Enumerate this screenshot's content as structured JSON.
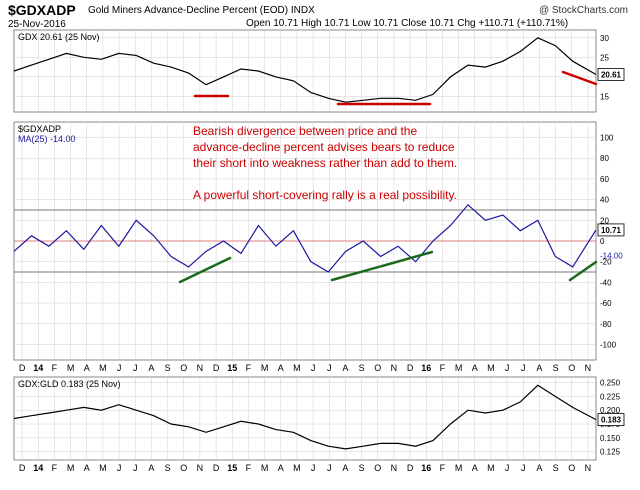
{
  "header": {
    "symbol": "$GDXADP",
    "description": "Gold Miners Advance-Decline Percent (EOD) INDX",
    "credit": "@ StockCharts.com",
    "date": "25-Nov-2016",
    "quote": "Open 10.71  High 10.71  Low 10.71  Close 10.71  Chg +110.71 (+110.71%)"
  },
  "colors": {
    "price_line": "#000000",
    "adp_line": "#1a1aa0",
    "annotation_text": "#cc0000",
    "bearish_line": "#cc0000",
    "bullish_line": "#1a6a1a",
    "zero_line": "#e08080",
    "grid": "#d0d0d0"
  },
  "annotation": {
    "lines": [
      "Bearish divergence between price and the",
      "advance-decline percent advises bears to reduce",
      "their short into weakness rather  than add to them.",
      "",
      "A powerful short-covering rally is a real possibility."
    ]
  },
  "x_axis": {
    "labels": [
      "D",
      "14",
      "F",
      "M",
      "A",
      "M",
      "J",
      "J",
      "A",
      "S",
      "O",
      "N",
      "D",
      "15",
      "F",
      "M",
      "A",
      "M",
      "J",
      "J",
      "A",
      "S",
      "O",
      "N",
      "D",
      "16",
      "F",
      "M",
      "A",
      "M",
      "J",
      "J",
      "A",
      "S",
      "O",
      "N"
    ],
    "bold_labels": [
      "14",
      "15",
      "16"
    ]
  },
  "chart_data": [
    {
      "type": "line",
      "panel": "top",
      "legend": "GDX 20.61 (25 Nov)",
      "last_value_label": "20.61",
      "ylim": [
        11,
        32
      ],
      "y_ticks": [
        15,
        20,
        25,
        30
      ],
      "x": [
        0,
        0.03,
        0.06,
        0.09,
        0.12,
        0.15,
        0.18,
        0.21,
        0.24,
        0.27,
        0.3,
        0.33,
        0.36,
        0.39,
        0.42,
        0.45,
        0.48,
        0.51,
        0.54,
        0.57,
        0.6,
        0.63,
        0.66,
        0.69,
        0.72,
        0.75,
        0.78,
        0.81,
        0.84,
        0.87,
        0.9,
        0.93,
        0.96,
        1.0
      ],
      "y": [
        21.5,
        23.0,
        24.5,
        26.0,
        25.0,
        24.5,
        26.0,
        25.5,
        23.5,
        22.5,
        21.0,
        18.0,
        20.0,
        22.0,
        21.5,
        20.0,
        19.0,
        16.0,
        14.5,
        13.5,
        14.0,
        14.5,
        14.5,
        14.0,
        15.5,
        20.0,
        23.0,
        22.5,
        24.0,
        26.5,
        30.0,
        28.0,
        24.0,
        20.61
      ]
    },
    {
      "type": "line",
      "panel": "middle",
      "legend": "$GDXADP",
      "legend_ma": "MA(25) -14.00",
      "last_value_label": "10.71",
      "ma_label": "-14.00",
      "ylim": [
        -115,
        115
      ],
      "y_ticks": [
        100,
        80,
        60,
        40,
        20,
        0,
        -20,
        -40,
        -60,
        -80,
        -100
      ],
      "reference_lines": [
        30,
        -30
      ],
      "x": [
        0,
        0.03,
        0.06,
        0.09,
        0.12,
        0.15,
        0.18,
        0.21,
        0.24,
        0.27,
        0.3,
        0.33,
        0.36,
        0.39,
        0.42,
        0.45,
        0.48,
        0.51,
        0.54,
        0.57,
        0.6,
        0.63,
        0.66,
        0.69,
        0.72,
        0.75,
        0.78,
        0.81,
        0.84,
        0.87,
        0.9,
        0.93,
        0.96,
        1.0
      ],
      "y": [
        -10,
        5,
        -5,
        10,
        -8,
        15,
        -5,
        20,
        5,
        -15,
        -25,
        -10,
        0,
        -12,
        15,
        -5,
        10,
        -20,
        -30,
        -10,
        0,
        -15,
        -5,
        -20,
        0,
        15,
        35,
        20,
        25,
        10,
        20,
        -15,
        -25,
        10.71
      ]
    },
    {
      "type": "line",
      "panel": "bottom",
      "legend": "GDX:GLD 0.183 (25 Nov)",
      "last_value_label": "0.183",
      "ylim": [
        0.11,
        0.26
      ],
      "y_ticks": [
        0.25,
        0.225,
        0.2,
        0.175,
        0.15,
        0.125
      ],
      "x": [
        0,
        0.03,
        0.06,
        0.09,
        0.12,
        0.15,
        0.18,
        0.21,
        0.24,
        0.27,
        0.3,
        0.33,
        0.36,
        0.39,
        0.42,
        0.45,
        0.48,
        0.51,
        0.54,
        0.57,
        0.6,
        0.63,
        0.66,
        0.69,
        0.72,
        0.75,
        0.78,
        0.81,
        0.84,
        0.87,
        0.9,
        0.93,
        0.96,
        1.0
      ],
      "y": [
        0.185,
        0.19,
        0.195,
        0.2,
        0.205,
        0.2,
        0.21,
        0.2,
        0.19,
        0.175,
        0.17,
        0.16,
        0.17,
        0.18,
        0.175,
        0.165,
        0.16,
        0.145,
        0.135,
        0.13,
        0.135,
        0.14,
        0.14,
        0.135,
        0.145,
        0.175,
        0.2,
        0.195,
        0.2,
        0.215,
        0.245,
        0.225,
        0.205,
        0.183
      ]
    }
  ]
}
